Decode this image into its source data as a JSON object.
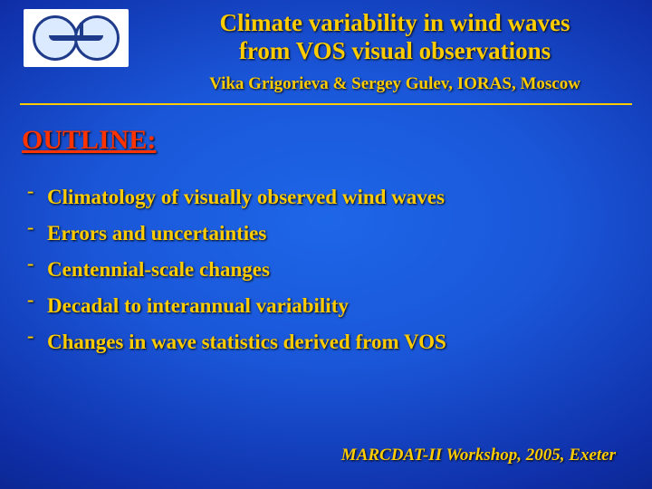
{
  "colors": {
    "accent_yellow": "#ffcc00",
    "heading_red": "#ff3300",
    "background_center": "#1e66e8",
    "background_edge": "#050f4a",
    "logo_bg": "#ffffff",
    "logo_stroke": "#1e3a8a"
  },
  "typography": {
    "family": "Times New Roman",
    "title_fontsize": 27,
    "authors_fontsize": 19,
    "outline_heading_fontsize": 30,
    "bullet_fontsize": 23,
    "footer_fontsize": 19
  },
  "header": {
    "title_line1": "Climate variability in wind waves",
    "title_line2": "from VOS visual observations",
    "authors": "Vika Grigorieva & Sergey Gulev, IORAS, Moscow"
  },
  "outline": {
    "heading": "OUTLINE:",
    "items": [
      "Climatology of visually observed wind waves",
      "Errors and uncertainties",
      "Centennial-scale changes",
      "Decadal to interannual variability",
      "Changes in wave statistics derived from VOS"
    ]
  },
  "footer": {
    "text": "MARCDAT-II Workshop, 2005, Exeter"
  }
}
